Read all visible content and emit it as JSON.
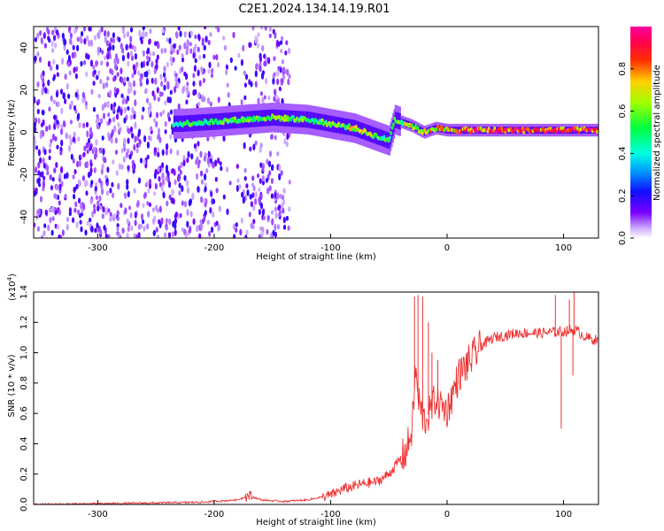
{
  "title": "C2E1.2024.134.14.19.R01",
  "chart_data": [
    {
      "type": "heatmap",
      "xlabel": "Height of straight line (km)",
      "ylabel": "Frequency (Hz)",
      "xlim": [
        -355,
        130
      ],
      "ylim": [
        -50,
        50
      ],
      "xticks": [
        -300,
        -200,
        -100,
        0,
        100
      ],
      "yticks": [
        -40,
        -20,
        0,
        20,
        40
      ],
      "colorbar": {
        "label": "Normalized spectral amplitude",
        "range": [
          0,
          1
        ],
        "ticks": [
          0.0,
          0.2,
          0.4,
          0.6,
          0.8
        ],
        "colormap": "rainbow (white → violet → blue → cyan → green → yellow → red → magenta)"
      },
      "ridge": {
        "description": "narrow high-amplitude band near 0 Hz",
        "x": [
          -230,
          -200,
          -150,
          -120,
          -100,
          -80,
          -60,
          -50,
          -45,
          -30,
          -20,
          -10,
          0,
          50,
          100,
          130
        ],
        "frequency": [
          4,
          5,
          7,
          6,
          4,
          2,
          -2,
          -4,
          6,
          3,
          0,
          2,
          1,
          1,
          1,
          1
        ],
        "amplitude": [
          0.5,
          0.55,
          0.6,
          0.55,
          0.6,
          0.65,
          0.6,
          0.5,
          0.6,
          0.65,
          0.7,
          0.75,
          0.8,
          0.9,
          0.9,
          0.85
        ]
      },
      "noise_region": {
        "x": [
          -355,
          -140
        ],
        "amplitude": "0.05–0.3, scattered over full frequency range"
      }
    },
    {
      "type": "line",
      "xlabel": "Height of straight line (km)",
      "ylabel": "SNR (10 * v/v)",
      "y_multiplier": "(x10⁴)",
      "y_multiplier_base": "(x10",
      "y_multiplier_exp": "4",
      "y_multiplier_close": ")",
      "xlim": [
        -355,
        130
      ],
      "ylim": [
        0,
        1.4
      ],
      "xticks": [
        -300,
        -200,
        -100,
        0,
        100
      ],
      "yticks": [
        0.0,
        0.2,
        0.4,
        0.6,
        0.8,
        1.0,
        1.2,
        1.4
      ],
      "series": [
        {
          "color": "#ee3333",
          "x": [
            -355,
            -300,
            -250,
            -210,
            -200,
            -180,
            -170,
            -160,
            -140,
            -120,
            -100,
            -90,
            -80,
            -70,
            -60,
            -50,
            -40,
            -35,
            -30,
            -27,
            -25,
            -20,
            -15,
            -10,
            -5,
            0,
            10,
            20,
            30,
            40,
            60,
            80,
            100,
            110,
            120,
            130
          ],
          "y": [
            0.0,
            0.005,
            0.01,
            0.015,
            0.02,
            0.03,
            0.06,
            0.03,
            0.02,
            0.03,
            0.06,
            0.1,
            0.12,
            0.14,
            0.15,
            0.2,
            0.3,
            0.35,
            0.5,
            0.9,
            0.7,
            0.55,
            0.6,
            0.7,
            0.65,
            0.62,
            0.85,
            0.95,
            1.05,
            1.1,
            1.13,
            1.13,
            1.14,
            1.15,
            1.1,
            1.08
          ]
        }
      ],
      "spikes": {
        "x": [
          -28,
          -25,
          -21,
          -16,
          -13,
          -8,
          93,
          98,
          105,
          108,
          109
        ],
        "y": [
          1.37,
          1.38,
          1.37,
          1.2,
          1.0,
          0.95,
          1.38,
          0.5,
          1.35,
          0.85,
          1.4
        ]
      }
    }
  ]
}
